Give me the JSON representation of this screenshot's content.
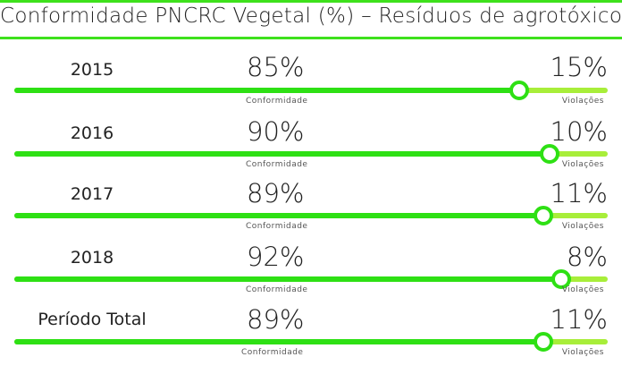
{
  "chart_data": {
    "type": "bar",
    "title": "Conformidade PNCRC Vegetal (%) – Resíduos de agrotóxicos",
    "categories": [
      "2015",
      "2016",
      "2017",
      "2018",
      "Período Total"
    ],
    "series": [
      {
        "name": "Conformidade",
        "values": [
          85,
          90,
          89,
          92,
          89
        ]
      },
      {
        "name": "Violações",
        "values": [
          15,
          10,
          11,
          8,
          11
        ]
      }
    ],
    "ylim": [
      0,
      100
    ],
    "colors": {
      "conformidade": "#2ee014",
      "violacoes": "#a8ee3a"
    }
  },
  "rows": [
    {
      "year": "2015",
      "conf": "85%",
      "conf_label": "Conformidade",
      "viol": "15%",
      "viol_label": "Violações"
    },
    {
      "year": "2016",
      "conf": "90%",
      "conf_label": "Conformidade",
      "viol": "10%",
      "viol_label": "Violações"
    },
    {
      "year": "2017",
      "conf": "89%",
      "conf_label": "Conformidade",
      "viol": "11%",
      "viol_label": "Violações"
    },
    {
      "year": "2018",
      "conf": "92%",
      "conf_label": "Conformidade",
      "viol": "8%",
      "viol_label": "Violações"
    },
    {
      "year": "Período Total",
      "conf": "89%",
      "conf_label": "Conformidade",
      "viol": "11%",
      "viol_label": "Violações"
    }
  ]
}
